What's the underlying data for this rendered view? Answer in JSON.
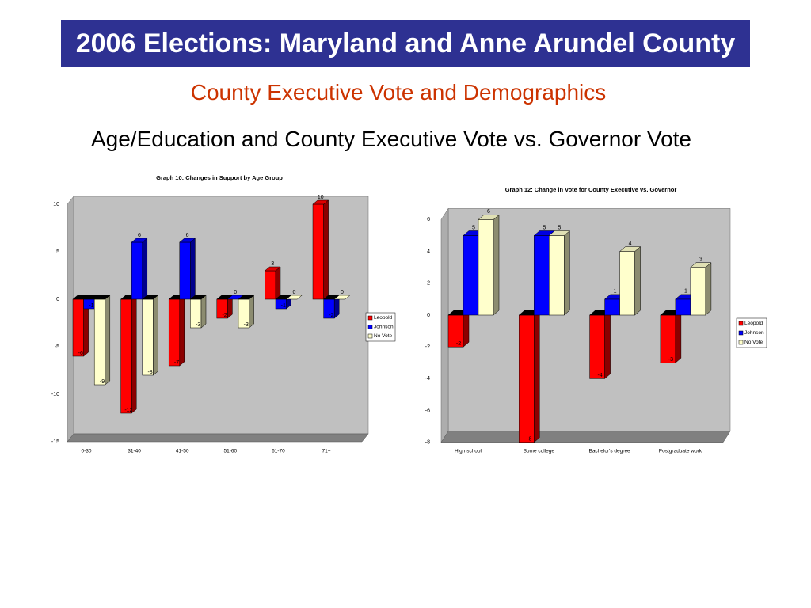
{
  "slide": {
    "title": "2006 Elections: Maryland and Anne Arundel County",
    "subtitle": "County Executive Vote and Demographics",
    "heading": "Age/Education and County Executive Vote vs. Governor Vote"
  },
  "colors": {
    "title_bar": "#2E3192",
    "title_text": "#FFFFFF",
    "subtitle": "#CC3300",
    "heading": "#000000",
    "plot_wall": "#C0C0C0",
    "plot_floor": "#808080"
  },
  "chart_data": [
    {
      "type": "bar",
      "3d": true,
      "title": "Graph 10: Changes in Support by Age Group",
      "categories": [
        "0-30",
        "31-40",
        "41-50",
        "51-60",
        "61-70",
        "71+"
      ],
      "series": [
        {
          "name": "Leopold",
          "color": "#FF0000",
          "values": [
            -6,
            -12,
            -7,
            -2,
            3,
            10
          ]
        },
        {
          "name": "Johnson",
          "color": "#0000FF",
          "values": [
            -1,
            6,
            6,
            0,
            -1,
            -2
          ]
        },
        {
          "name": "No Vote",
          "color": "#FFFFCC",
          "values": [
            -9,
            -8,
            -3,
            -3,
            0,
            0
          ]
        }
      ],
      "ylim": [
        -15,
        10
      ],
      "yticks": [
        10,
        5,
        0,
        -5,
        -10,
        -15
      ],
      "grid": false,
      "data_labels": true,
      "legend": "right"
    },
    {
      "type": "bar",
      "3d": true,
      "title": "Graph 12: Change in Vote for County Executive vs. Governor",
      "categories": [
        "High school",
        "Some college",
        "Bachelor's degree",
        "Postgraduate work"
      ],
      "series": [
        {
          "name": "Leopold",
          "color": "#FF0000",
          "values": [
            -2,
            -8,
            -4,
            -3
          ]
        },
        {
          "name": "Johnson",
          "color": "#0000FF",
          "values": [
            5,
            5,
            1,
            1
          ]
        },
        {
          "name": "No Vote",
          "color": "#FFFFCC",
          "values": [
            6,
            5,
            4,
            3
          ]
        }
      ],
      "ylim": [
        -8,
        6
      ],
      "yticks": [
        6,
        4,
        2,
        0,
        -2,
        -4,
        -6,
        -8
      ],
      "grid": false,
      "data_labels": true,
      "legend": "right"
    }
  ]
}
